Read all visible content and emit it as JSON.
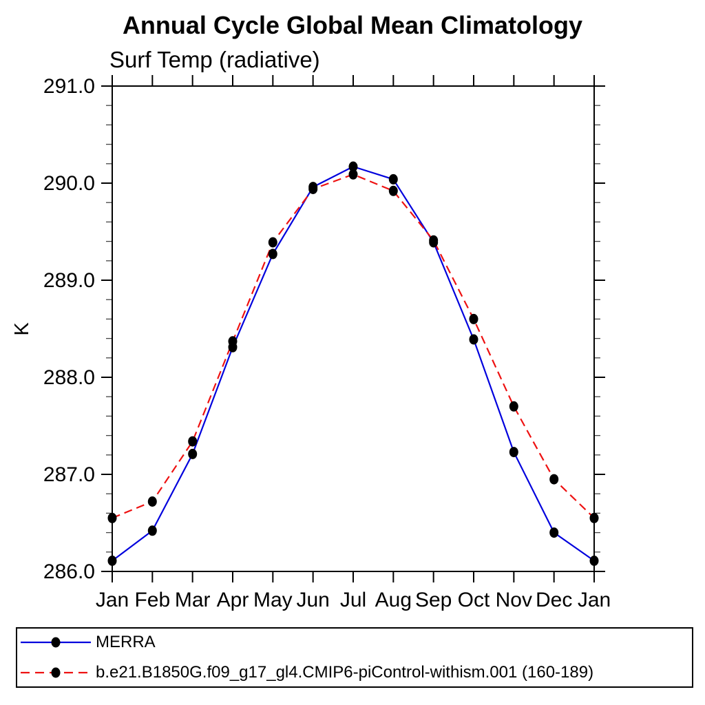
{
  "page": {
    "background": "#ffffff",
    "text_color": "#000000"
  },
  "chart_data": {
    "type": "line",
    "title": "Annual Cycle Global Mean Climatology",
    "subtitle": "Surf Temp (radiative)",
    "xlabel": "",
    "ylabel": "K",
    "categories": [
      "Jan",
      "Feb",
      "Mar",
      "Apr",
      "May",
      "Jun",
      "Jul",
      "Aug",
      "Sep",
      "Oct",
      "Nov",
      "Dec",
      "Jan"
    ],
    "ylim": [
      286.0,
      291.0
    ],
    "ytick_major": [
      286.0,
      287.0,
      288.0,
      289.0,
      290.0,
      291.0
    ],
    "ytick_labels": [
      "286.0",
      "287.0",
      "288.0",
      "289.0",
      "290.0",
      "291.0"
    ],
    "ytick_minor_step": 0.2,
    "grid": false,
    "frame": "box-with-outward-ticks",
    "legend_position": "bottom-left-box",
    "axis_color": "#000000",
    "series": [
      {
        "name": "MERRA",
        "color": "#0000dd",
        "style": "solid",
        "marker": "filled-circle",
        "marker_color": "#000000",
        "values": [
          286.11,
          286.42,
          287.21,
          288.31,
          289.27,
          289.96,
          290.17,
          290.04,
          289.39,
          288.39,
          287.23,
          286.4,
          286.11
        ]
      },
      {
        "name": "b.e21.B1850G.f09_g17_gl4.CMIP6-piControl-withism.001 (160-189)",
        "color": "#ee1111",
        "style": "dashed",
        "marker": "filled-circle",
        "marker_color": "#000000",
        "values": [
          286.55,
          286.72,
          287.34,
          288.37,
          289.39,
          289.94,
          290.09,
          289.92,
          289.41,
          288.6,
          287.7,
          286.95,
          286.55
        ]
      }
    ]
  }
}
